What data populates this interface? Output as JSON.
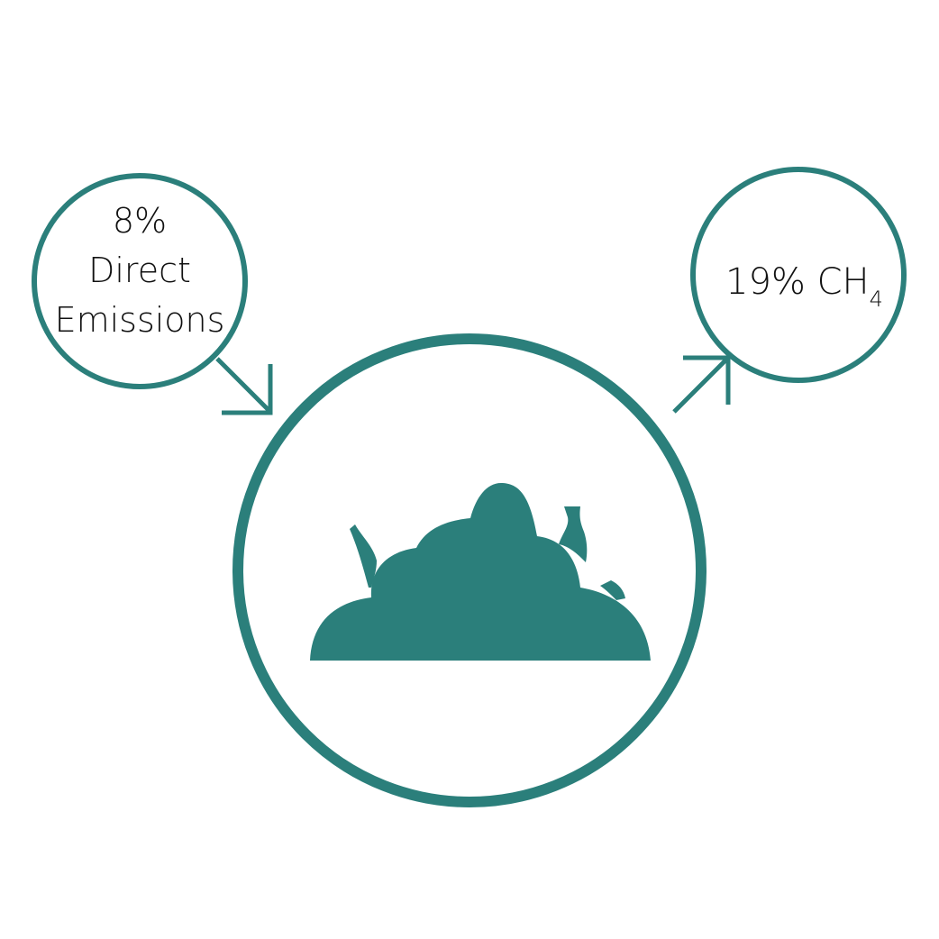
{
  "colors": {
    "accent": "#2b7f7b",
    "text": "#111111",
    "background": "#ffffff"
  },
  "direct_emissions": {
    "line1": "8%",
    "line2": "Direct",
    "line3": "Emissions"
  },
  "methane": {
    "prefix": "19% CH",
    "subscript": "4"
  },
  "icons": {
    "center": "waste-pile-icon",
    "in_arrow": "arrow-down-right-icon",
    "out_arrow": "arrow-up-right-icon"
  }
}
